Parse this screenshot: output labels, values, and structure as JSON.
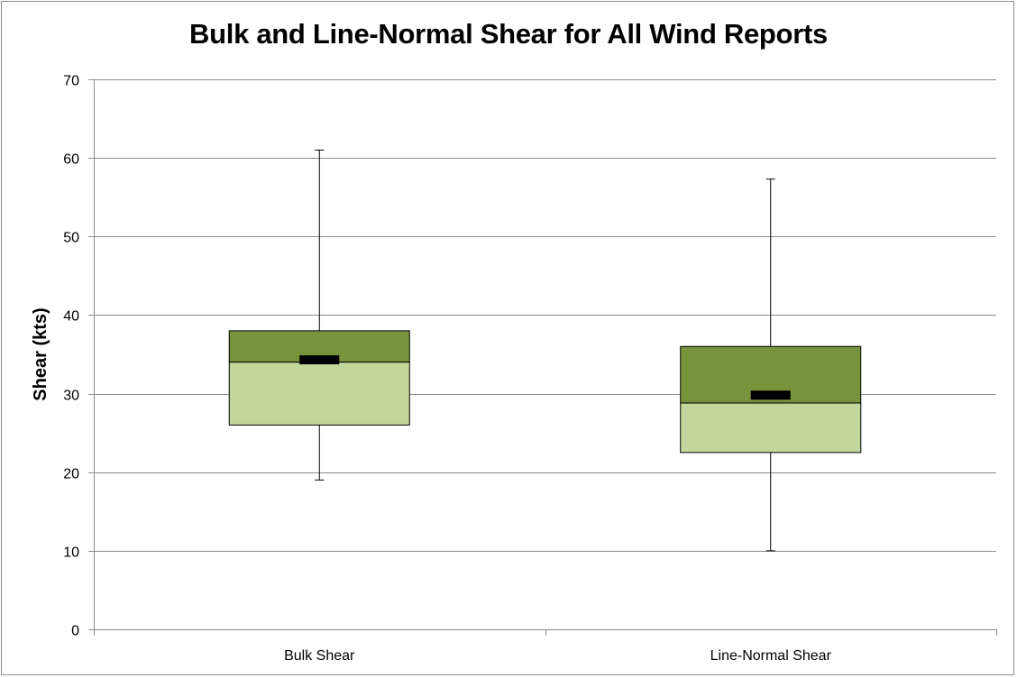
{
  "chart_data": {
    "type": "box",
    "title": "Bulk and Line-Normal Shear for All Wind Reports",
    "ylabel": "Shear (kts)",
    "xlabel": "",
    "ylim": [
      0,
      70
    ],
    "yticks": [
      "0",
      "10",
      "20",
      "30",
      "40",
      "50",
      "60",
      "70"
    ],
    "grid": true,
    "categories": [
      "Bulk Shear",
      "Line-Normal Shear"
    ],
    "boxes": [
      {
        "category": "Bulk Shear",
        "min": 19,
        "q1": 26,
        "median": 34,
        "q3": 38,
        "max": 61,
        "mean": 34.3
      },
      {
        "category": "Line-Normal Shear",
        "min": 10,
        "q1": 22.5,
        "median": 28.8,
        "q3": 36,
        "max": 57.3,
        "mean": 29.8
      }
    ],
    "colors": {
      "upper_box": "#77933c",
      "lower_box": "#c3d69b",
      "mean_marker": "#000000",
      "gridline": "#8c8c8c"
    }
  }
}
